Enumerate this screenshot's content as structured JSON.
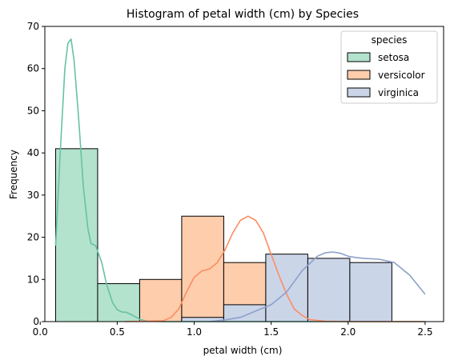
{
  "chart_data": {
    "type": "bar",
    "title": "Histogram of petal width (cm) by Species",
    "xlabel": "petal width (cm)",
    "ylabel": "Frequency",
    "xlim": [
      0.03,
      2.62
    ],
    "ylim": [
      0,
      70
    ],
    "x_ticks": [
      0.0,
      0.5,
      1.0,
      1.5,
      2.0,
      2.5
    ],
    "x_tick_labels": [
      "0.0",
      "0.5",
      "1.0",
      "1.5",
      "2.0",
      "2.5"
    ],
    "y_ticks": [
      0,
      10,
      20,
      30,
      40,
      50,
      60,
      70
    ],
    "y_tick_labels": [
      "0",
      "10",
      "20",
      "30",
      "40",
      "50",
      "60",
      "70"
    ],
    "bin_edges": [
      0.1,
      0.373,
      0.646,
      0.919,
      1.192,
      1.465,
      1.738,
      2.011,
      2.284,
      2.557
    ],
    "legend_title": "species",
    "legend_position": "upper right",
    "series": [
      {
        "name": "setosa",
        "fill": "#b3e2cd",
        "line": "#66c2a5",
        "counts": [
          41,
          9,
          0,
          0,
          0,
          0,
          0,
          0,
          0
        ],
        "kde": [
          [
            0.1,
            18
          ],
          [
            0.13,
            40
          ],
          [
            0.16,
            60
          ],
          [
            0.18,
            66
          ],
          [
            0.2,
            67
          ],
          [
            0.22,
            62
          ],
          [
            0.25,
            48
          ],
          [
            0.28,
            32
          ],
          [
            0.31,
            22
          ],
          [
            0.33,
            18.5
          ],
          [
            0.36,
            18
          ],
          [
            0.4,
            14
          ],
          [
            0.43,
            9
          ],
          [
            0.47,
            4.5
          ],
          [
            0.5,
            2.8
          ],
          [
            0.53,
            2.3
          ],
          [
            0.56,
            2.2
          ],
          [
            0.6,
            1.5
          ],
          [
            0.65,
            0.5
          ],
          [
            0.7,
            0.1
          ],
          [
            0.8,
            0
          ],
          [
            1.5,
            0
          ],
          [
            2.5,
            0
          ]
        ]
      },
      {
        "name": "versicolor",
        "fill": "#fdcdac",
        "line": "#fc8d62",
        "counts": [
          0,
          0,
          10,
          25,
          14,
          1,
          0,
          0,
          0
        ],
        "kde": [
          [
            0.55,
            0
          ],
          [
            0.8,
            0.2
          ],
          [
            0.85,
            1
          ],
          [
            0.9,
            3
          ],
          [
            0.95,
            7
          ],
          [
            1.0,
            10.5
          ],
          [
            1.05,
            12
          ],
          [
            1.1,
            12.5
          ],
          [
            1.15,
            14
          ],
          [
            1.2,
            17
          ],
          [
            1.25,
            21
          ],
          [
            1.3,
            24
          ],
          [
            1.35,
            25
          ],
          [
            1.4,
            24
          ],
          [
            1.45,
            21
          ],
          [
            1.5,
            16
          ],
          [
            1.55,
            11
          ],
          [
            1.6,
            6.5
          ],
          [
            1.65,
            3
          ],
          [
            1.7,
            1.5
          ],
          [
            1.75,
            0.5
          ],
          [
            1.85,
            0.1
          ],
          [
            2.0,
            0
          ],
          [
            2.5,
            0
          ]
        ]
      },
      {
        "name": "virginica",
        "fill": "#cbd5e8",
        "line": "#8da0cb",
        "counts": [
          0,
          0,
          0,
          1,
          4,
          16,
          15,
          14,
          0
        ],
        "kde": [
          [
            1.1,
            0
          ],
          [
            1.2,
            0.4
          ],
          [
            1.3,
            1
          ],
          [
            1.4,
            2.5
          ],
          [
            1.5,
            4
          ],
          [
            1.6,
            7
          ],
          [
            1.7,
            12
          ],
          [
            1.8,
            15.5
          ],
          [
            1.85,
            16.3
          ],
          [
            1.9,
            16.5
          ],
          [
            1.95,
            16.2
          ],
          [
            2.0,
            15.5
          ],
          [
            2.05,
            15.2
          ],
          [
            2.1,
            15
          ],
          [
            2.2,
            14.8
          ],
          [
            2.3,
            14
          ],
          [
            2.4,
            11
          ],
          [
            2.5,
            6.5
          ]
        ]
      }
    ]
  }
}
